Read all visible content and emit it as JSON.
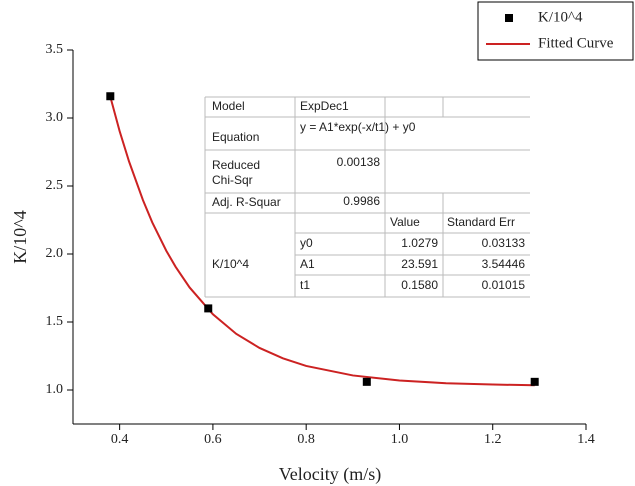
{
  "chart_data": {
    "type": "scatter",
    "xlabel": "Velocity (m/s)",
    "ylabel": "K/10^4",
    "xlim": [
      0.3,
      1.4
    ],
    "xticks": [
      0.4,
      0.6,
      0.8,
      {
        "value": 1,
        "label": "1.0"
      },
      1.2,
      1.4
    ],
    "ylim": [
      0.75,
      3.5
    ],
    "yticks": [
      {
        "value": 1,
        "label": "1.0"
      },
      1.5,
      {
        "value": 2,
        "label": "2.0"
      },
      2.5,
      {
        "value": 3,
        "label": "3.0"
      },
      3.5
    ],
    "legend": "upper right",
    "series": [
      {
        "name": "K/10^4",
        "type": "scatter",
        "color": "#000000",
        "x": [
          0.38,
          0.59,
          0.93,
          1.29
        ],
        "values": [
          3.16,
          1.6,
          1.06,
          1.06
        ]
      },
      {
        "name": "Fitted Curve",
        "type": "line",
        "color": "#cc2222",
        "x": [
          0.38,
          0.4,
          0.42,
          0.45,
          0.47,
          0.5,
          0.52,
          0.55,
          0.6,
          0.65,
          0.7,
          0.75,
          0.8,
          0.9,
          1.0,
          1.1,
          1.2,
          1.29
        ],
        "values": [
          3.156,
          2.903,
          2.682,
          2.396,
          2.232,
          2.024,
          1.906,
          1.754,
          1.557,
          1.413,
          1.309,
          1.233,
          1.177,
          1.107,
          1.07,
          1.05,
          1.04,
          1.035
        ]
      }
    ],
    "fit_table": {
      "model_label": "Model",
      "model": "ExpDec1",
      "equation_label": "Equation",
      "equation": "y = A1*exp(-x/t1) + y0",
      "chi_label": [
        "Reduced",
        "Chi-Sqr"
      ],
      "chi": "0.00138",
      "r2_label": "Adj. R-Squar",
      "r2": "0.9986",
      "header": [
        "Value",
        "Standard Err"
      ],
      "group": "K/10^4",
      "rows": [
        [
          "y0",
          "1.0279",
          "0.03133"
        ],
        [
          "A1",
          "23.591",
          "3.54446"
        ],
        [
          "t1",
          "0.1580",
          "0.01015"
        ]
      ]
    }
  }
}
